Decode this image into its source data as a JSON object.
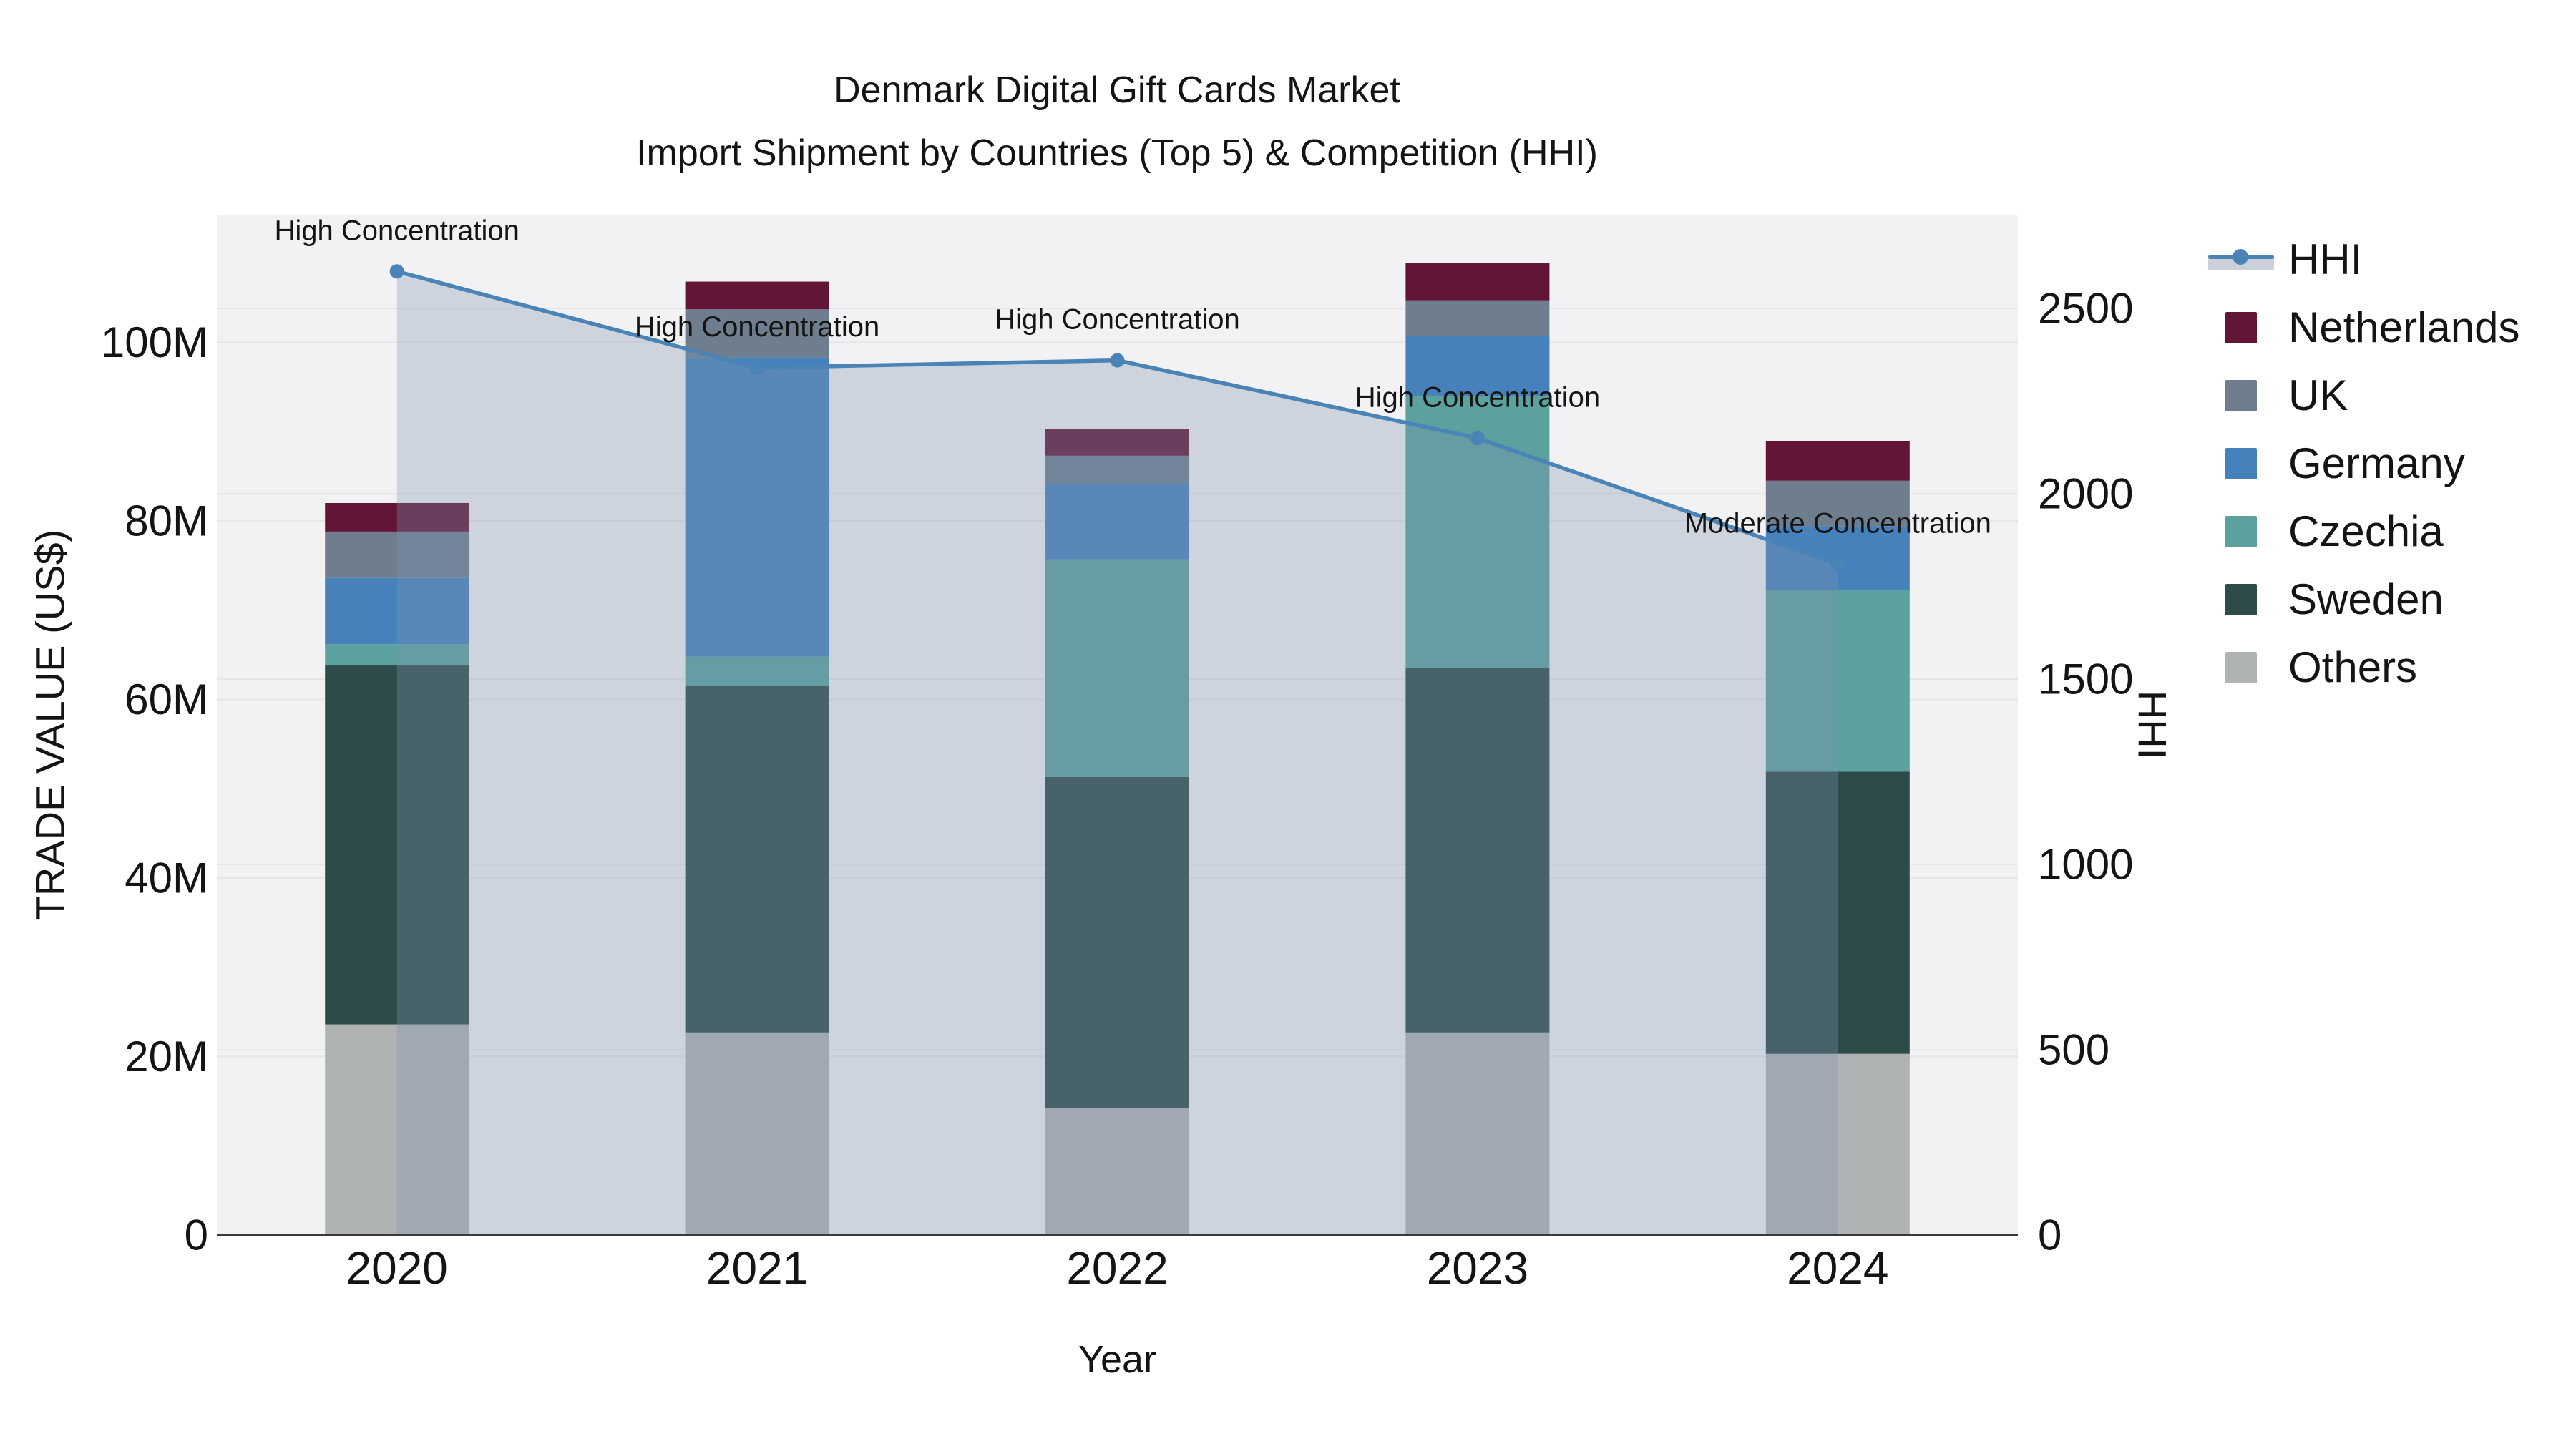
{
  "title": {
    "line1": "Denmark Digital Gift Cards Market",
    "line2": "Import Shipment by Countries (Top 5) & Competition (HHI)"
  },
  "axes": {
    "x": {
      "title": "Year",
      "ticks": [
        "2020",
        "2021",
        "2022",
        "2023",
        "2024"
      ]
    },
    "y_left": {
      "title": "TRADE VALUE (US$)",
      "tick_labels": [
        "0",
        "20M",
        "40M",
        "60M",
        "80M",
        "100M"
      ],
      "tick_values": [
        0,
        20,
        40,
        60,
        80,
        100
      ],
      "max": 114.3
    },
    "y_right": {
      "title": "HHI",
      "tick_labels": [
        "0",
        "500",
        "1000",
        "1500",
        "2000",
        "2500"
      ],
      "tick_values": [
        0,
        500,
        1000,
        1500,
        2000,
        2500
      ],
      "max": 2753
    }
  },
  "chart_data": {
    "type": "combo_stacked_bar_line",
    "categories": [
      "2020",
      "2021",
      "2022",
      "2023",
      "2024"
    ],
    "xlabel": "Year",
    "ylabel_left": "TRADE VALUE (US$)",
    "ylabel_right": "HHI",
    "bar_value_unit": "million US$",
    "ylim_left": [
      0,
      114.3
    ],
    "ylim_right": [
      0,
      2753
    ],
    "grid": true,
    "legend_position": "right",
    "series": [
      {
        "name": "Others",
        "color": "#b0b3b4",
        "values": [
          23.6,
          22.7,
          14.2,
          22.7,
          20.3
        ]
      },
      {
        "name": "Sweden",
        "color": "#2d4b48",
        "values": [
          40.2,
          38.8,
          37.1,
          40.8,
          31.6
        ]
      },
      {
        "name": "Czechia",
        "color": "#5ba19e",
        "values": [
          2.4,
          3.3,
          24.4,
          30.5,
          20.4
        ]
      },
      {
        "name": "Germany",
        "color": "#4681bb",
        "values": [
          7.4,
          33.5,
          8.5,
          6.7,
          7.1
        ]
      },
      {
        "name": "UK",
        "color": "#6e7e8f",
        "values": [
          5.2,
          5.4,
          3.1,
          4.0,
          5.1
        ]
      },
      {
        "name": "Netherlands",
        "color": "#621537",
        "values": [
          3.2,
          3.1,
          3.0,
          4.2,
          4.4
        ]
      }
    ],
    "bar_totals": [
      82.0,
      106.8,
      90.3,
      108.9,
      88.9
    ],
    "line_series": {
      "name": "HHI",
      "color": "#4a83b6",
      "fill_color": "rgba(126,148,177,0.32)",
      "values": [
        2600,
        2340,
        2360,
        2150,
        1810
      ]
    },
    "annotations": [
      {
        "category": "2020",
        "label": "High Concentration"
      },
      {
        "category": "2021",
        "label": "High Concentration"
      },
      {
        "category": "2022",
        "label": "High Concentration"
      },
      {
        "category": "2023",
        "label": "High Concentration"
      },
      {
        "category": "2024",
        "label": "Moderate Concentration"
      }
    ]
  },
  "legend": {
    "items": [
      {
        "label": "HHI",
        "type": "line",
        "color": "#4a83b6"
      },
      {
        "label": "Netherlands",
        "type": "box",
        "color": "#621537"
      },
      {
        "label": "UK",
        "type": "box",
        "color": "#6e7e8f"
      },
      {
        "label": "Germany",
        "type": "box",
        "color": "#4681bb"
      },
      {
        "label": "Czechia",
        "type": "box",
        "color": "#5ba19e"
      },
      {
        "label": "Sweden",
        "type": "box",
        "color": "#2d4b48"
      },
      {
        "label": "Others",
        "type": "box",
        "color": "#b0b3b4"
      }
    ]
  },
  "colors": {
    "background": "#ffffff",
    "plot_background": "#f2f2f4",
    "gridline": "#e6e6ea",
    "axis_line": "#3a3a3a",
    "text": "#141414",
    "hhi_line": "#4a83b6",
    "hhi_fill": "rgba(126,148,177,0.32)",
    "hhi_legend_band": "#cbd0da"
  }
}
